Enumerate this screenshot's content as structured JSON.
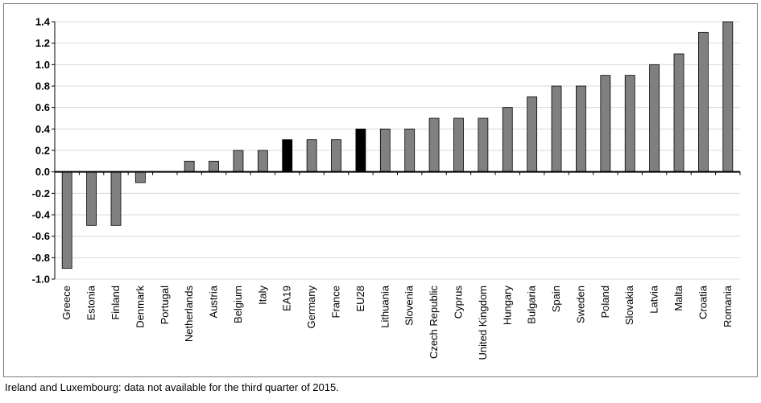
{
  "chart_data": {
    "type": "bar",
    "categories": [
      "Greece",
      "Estonia",
      "Finland",
      "Denmark",
      "Portugal",
      "Netherlands",
      "Austria",
      "Belgium",
      "Italy",
      "EA19",
      "Germany",
      "France",
      "EU28",
      "Lithuania",
      "Slovenia",
      "Czech Republic",
      "Cyprus",
      "United Kingdom",
      "Hungary",
      "Bulgaria",
      "Spain",
      "Sweden",
      "Poland",
      "Slovakia",
      "Latvia",
      "Malta",
      "Croatia",
      "Romania"
    ],
    "values": [
      -0.9,
      -0.5,
      -0.5,
      -0.1,
      0.0,
      0.1,
      0.1,
      0.2,
      0.2,
      0.3,
      0.3,
      0.3,
      0.4,
      0.4,
      0.4,
      0.5,
      0.5,
      0.5,
      0.6,
      0.7,
      0.8,
      0.8,
      0.9,
      0.9,
      1.0,
      1.1,
      1.3,
      1.4
    ],
    "highlight": [
      "EA19",
      "EU28"
    ],
    "ylim": [
      -1.0,
      1.4
    ],
    "yticks": [
      "1.4",
      "1.2",
      "1.0",
      "0.8",
      "0.6",
      "0.4",
      "0.2",
      "0.0",
      "-0.2",
      "-0.4",
      "-0.6",
      "-0.8",
      "-1.0"
    ],
    "ytick_values": [
      1.4,
      1.2,
      1.0,
      0.8,
      0.6,
      0.4,
      0.2,
      0.0,
      -0.2,
      -0.4,
      -0.6,
      -0.8,
      -1.0
    ],
    "grid": true,
    "colors": {
      "bar": "#808080",
      "highlight": "#000000",
      "grid": "#d9d9d9",
      "axis": "#000000"
    }
  },
  "footnote": "Ireland and Luxembourg: data not available for the third quarter of 2015."
}
